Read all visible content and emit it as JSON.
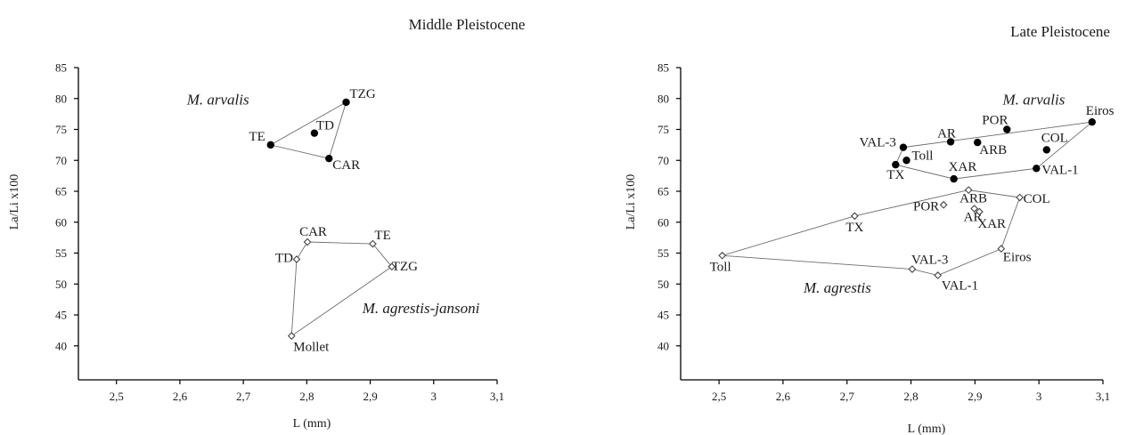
{
  "chart_data": [
    {
      "type": "scatter",
      "title": "Middle Pleistocene",
      "xlabel": "L (mm)",
      "ylabel": "La/Li x100",
      "xlim": [
        2.44,
        3.1
      ],
      "ylim": [
        34.5,
        85
      ],
      "xticks": [
        2.5,
        2.6,
        2.7,
        2.8,
        2.9,
        3.0,
        3.1
      ],
      "xtick_labels": [
        "2,5",
        "2,6",
        "2,7",
        "2,8",
        "2,9",
        "3",
        "3,1"
      ],
      "yticks": [
        40,
        45,
        50,
        55,
        60,
        65,
        70,
        75,
        80,
        85
      ],
      "ytick_labels": [
        "40",
        "45",
        "50",
        "55",
        "60",
        "65",
        "70",
        "75",
        "80",
        "85"
      ],
      "series": [
        {
          "name": "M. arvalis",
          "marker": "filled-circle",
          "points": [
            {
              "label": "TZG",
              "x": 2.862,
              "y": 79.4
            },
            {
              "label": "TD",
              "x": 2.812,
              "y": 74.4
            },
            {
              "label": "TE",
              "x": 2.743,
              "y": 72.5
            },
            {
              "label": "CAR",
              "x": 2.835,
              "y": 70.3
            }
          ],
          "hull": [
            "TZG",
            "TE",
            "CAR"
          ],
          "group_label_at": {
            "x": 2.66,
            "y": 79.0
          }
        },
        {
          "name": "M. agrestis-jansoni",
          "marker": "open-diamond",
          "points": [
            {
              "label": "CAR",
              "x": 2.801,
              "y": 56.8
            },
            {
              "label": "TE",
              "x": 2.904,
              "y": 56.5
            },
            {
              "label": "TD",
              "x": 2.784,
              "y": 54.0
            },
            {
              "label": "TZG",
              "x": 2.934,
              "y": 52.8
            },
            {
              "label": "Mollet",
              "x": 2.776,
              "y": 41.6
            }
          ],
          "hull": [
            "CAR",
            "TE",
            "TZG",
            "Mollet",
            "TD"
          ],
          "group_label_at": {
            "x": 2.98,
            "y": 45.3
          }
        }
      ]
    },
    {
      "type": "scatter",
      "title": "Late Pleistocene",
      "xlabel": "L (mm)",
      "ylabel": "La/Li x100",
      "xlim": [
        2.44,
        3.1
      ],
      "ylim": [
        34.5,
        85
      ],
      "xticks": [
        2.5,
        2.6,
        2.7,
        2.8,
        2.9,
        3.0,
        3.1
      ],
      "xtick_labels": [
        "2,5",
        "2,6",
        "2,7",
        "2,8",
        "2,9",
        "3",
        "3,1"
      ],
      "yticks": [
        40,
        45,
        50,
        55,
        60,
        65,
        70,
        75,
        80,
        85
      ],
      "ytick_labels": [
        "40",
        "45",
        "50",
        "55",
        "60",
        "65",
        "70",
        "75",
        "80",
        "85"
      ],
      "series": [
        {
          "name": "M. arvalis",
          "marker": "filled-circle",
          "points": [
            {
              "label": "Eiros",
              "x": 3.083,
              "y": 76.2
            },
            {
              "label": "POR",
              "x": 2.95,
              "y": 75.0
            },
            {
              "label": "AR",
              "x": 2.862,
              "y": 73.0
            },
            {
              "label": "ARB",
              "x": 2.904,
              "y": 72.9
            },
            {
              "label": "VAL-3",
              "x": 2.788,
              "y": 72.1
            },
            {
              "label": "COL",
              "x": 3.012,
              "y": 71.7
            },
            {
              "label": "Toll",
              "x": 2.793,
              "y": 70.0
            },
            {
              "label": "TX",
              "x": 2.776,
              "y": 69.3
            },
            {
              "label": "VAL-1",
              "x": 2.996,
              "y": 68.7
            },
            {
              "label": "XAR",
              "x": 2.867,
              "y": 67.0
            }
          ],
          "hull": [
            "VAL-3",
            "Eiros",
            "VAL-1",
            "XAR",
            "TX"
          ],
          "group_label_at": {
            "x": 2.992,
            "y": 79.0
          }
        },
        {
          "name": "M. agrestis",
          "marker": "open-diamond",
          "points": [
            {
              "label": "ARB",
              "x": 2.89,
              "y": 65.2
            },
            {
              "label": "COL",
              "x": 2.97,
              "y": 64.0
            },
            {
              "label": "POR",
              "x": 2.851,
              "y": 62.8
            },
            {
              "label": "AR",
              "x": 2.899,
              "y": 62.2
            },
            {
              "label": "XAR",
              "x": 2.907,
              "y": 61.7
            },
            {
              "label": "TX",
              "x": 2.712,
              "y": 61.0
            },
            {
              "label": "Eiros",
              "x": 2.941,
              "y": 55.7
            },
            {
              "label": "Toll",
              "x": 2.505,
              "y": 54.6
            },
            {
              "label": "VAL-3",
              "x": 2.802,
              "y": 52.4
            },
            {
              "label": "VAL-1",
              "x": 2.842,
              "y": 51.4
            }
          ],
          "hull": [
            "ARB",
            "COL",
            "Eiros",
            "VAL-1",
            "VAL-3",
            "Toll",
            "TX"
          ],
          "group_label_at": {
            "x": 2.685,
            "y": 48.6
          }
        }
      ]
    }
  ]
}
